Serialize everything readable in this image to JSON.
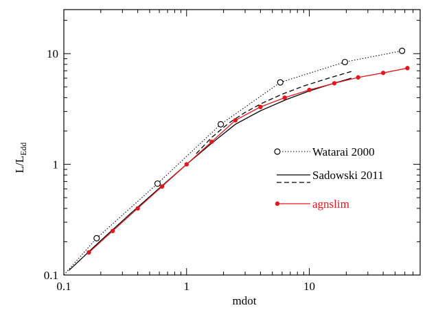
{
  "chart_data": {
    "type": "line",
    "xlabel": "mdot",
    "ylabel": {
      "main": "L/L",
      "sub": "Edd"
    },
    "xscale": "log",
    "yscale": "log",
    "xlim": [
      0.1,
      80
    ],
    "ylim": [
      0.1,
      25
    ],
    "xticks": [
      {
        "v": 0.1,
        "label": "0.1"
      },
      {
        "v": 1,
        "label": "1"
      },
      {
        "v": 10,
        "label": "10"
      }
    ],
    "yticks": [
      {
        "v": 0.1,
        "label": "0.1"
      },
      {
        "v": 1,
        "label": "1"
      },
      {
        "v": 10,
        "label": "10"
      }
    ],
    "grid": false,
    "legend_position": "center-right",
    "series": [
      {
        "name": "Watarai 2000",
        "color": "#000000",
        "style": "dotted",
        "marker": "open-circle",
        "x": [
          0.1,
          0.185,
          0.58,
          1.9,
          5.8,
          19.5,
          57
        ],
        "y": [
          0.1,
          0.215,
          0.67,
          2.3,
          5.5,
          8.4,
          10.6
        ],
        "markers_x": [
          0.185,
          0.58,
          1.9,
          5.8,
          19.5,
          57
        ],
        "markers_y": [
          0.215,
          0.67,
          2.3,
          5.5,
          8.4,
          10.6
        ]
      },
      {
        "name": "Sadowski 2011",
        "color": "#000000",
        "style": "solid",
        "marker": "none",
        "x": [
          0.11,
          0.2,
          0.35,
          0.6,
          1.0,
          1.6,
          2.5,
          4.0,
          6.5,
          10,
          15,
          22
        ],
        "y": [
          0.11,
          0.205,
          0.36,
          0.61,
          1.0,
          1.55,
          2.3,
          3.05,
          3.85,
          4.6,
          5.3,
          6.0
        ]
      },
      {
        "name": "Sadowski 2011",
        "color": "#000000",
        "style": "dashed",
        "marker": "none",
        "x": [
          1.2,
          1.6,
          2.2,
          3.0,
          4.2,
          6.0,
          9,
          14,
          22
        ],
        "y": [
          1.25,
          1.75,
          2.35,
          2.95,
          3.6,
          4.3,
          5.1,
          5.95,
          6.9
        ]
      },
      {
        "name": "agnslim",
        "color": "#e8141c",
        "style": "solid",
        "marker": "filled-circle",
        "x": [
          0.16,
          0.25,
          0.4,
          0.63,
          1.0,
          1.6,
          2.5,
          4.0,
          6.3,
          10,
          16,
          25,
          40,
          63
        ],
        "y": [
          0.16,
          0.25,
          0.4,
          0.63,
          1.0,
          1.6,
          2.5,
          3.3,
          4.0,
          4.7,
          5.4,
          6.1,
          6.7,
          7.4
        ]
      }
    ],
    "legend": [
      {
        "label": "Watarai 2000",
        "color": "#000000",
        "series": 0
      },
      {
        "label": "Sadowski 2011",
        "color": "#000000",
        "series": 1
      },
      {
        "label": "agnslim",
        "color": "#e8141c",
        "series": 3
      }
    ]
  }
}
